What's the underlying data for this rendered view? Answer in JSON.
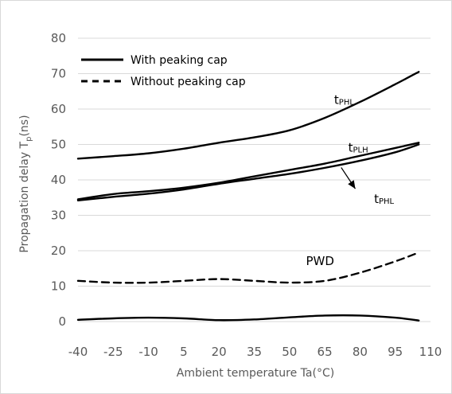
{
  "chart_data": {
    "type": "line",
    "xlabel": "Ambient temperature Ta(°C)",
    "ylabel_main": "Propagation delay  T",
    "ylabel_sub": "p",
    "ylabel_unit": "(ns)",
    "xticks": [
      -40,
      -25,
      -10,
      5,
      20,
      35,
      50,
      65,
      80,
      95,
      110
    ],
    "yticks": [
      0,
      10,
      20,
      30,
      40,
      50,
      60,
      70,
      80
    ],
    "xlim": [
      -40,
      110
    ],
    "ylim": [
      0,
      80
    ],
    "grid": "horizontal",
    "legend_position": "top-left",
    "legend": [
      {
        "label": "With peaking cap",
        "style": "solid"
      },
      {
        "label": "Without peaking cap",
        "style": "dashed"
      }
    ],
    "series": [
      {
        "style": "solid",
        "x": [
          -40,
          -25,
          -10,
          5,
          20,
          35,
          50,
          65,
          80,
          95,
          105
        ],
        "y": [
          46,
          46.7,
          47.5,
          48.8,
          50.5,
          52,
          54,
          57.5,
          62,
          67,
          70.5
        ]
      },
      {
        "style": "solid",
        "x": [
          -40,
          -25,
          -10,
          5,
          20,
          35,
          50,
          65,
          80,
          95,
          105
        ],
        "y": [
          34.5,
          36,
          36.8,
          37.8,
          39.2,
          41,
          42.8,
          44.6,
          46.8,
          49,
          50.5
        ]
      },
      {
        "style": "solid",
        "x": [
          -40,
          -25,
          -10,
          5,
          20,
          35,
          50,
          65,
          80,
          95,
          105
        ],
        "y": [
          34.2,
          35.2,
          36.1,
          37.3,
          38.9,
          40.3,
          41.7,
          43.4,
          45.4,
          47.8,
          50
        ]
      },
      {
        "style": "dashed",
        "x": [
          -40,
          -25,
          -10,
          5,
          20,
          35,
          50,
          65,
          80,
          95,
          105
        ],
        "y": [
          11.5,
          11,
          11,
          11.5,
          12,
          11.5,
          11,
          11.5,
          13.8,
          17,
          19.5
        ]
      },
      {
        "style": "solid",
        "x": [
          -40,
          -25,
          -10,
          5,
          20,
          35,
          50,
          65,
          80,
          95,
          105
        ],
        "y": [
          0.5,
          0.9,
          1.1,
          0.9,
          0.4,
          0.6,
          1.2,
          1.7,
          1.7,
          1.1,
          0.3
        ]
      }
    ],
    "annotations": [
      {
        "main": "t",
        "sub": "PHL",
        "x": 69,
        "y": 61.5
      },
      {
        "main": "t",
        "sub": "PLH",
        "x": 75,
        "y": 48
      },
      {
        "main": "t",
        "sub": "PHL",
        "x": 86,
        "y": 33.5
      },
      {
        "main": "PWD",
        "sub": "",
        "x": 57,
        "y": 16
      }
    ],
    "arrow": {
      "x1": 72,
      "y1": 43.5,
      "x2": 78,
      "y2": 37.5
    }
  }
}
